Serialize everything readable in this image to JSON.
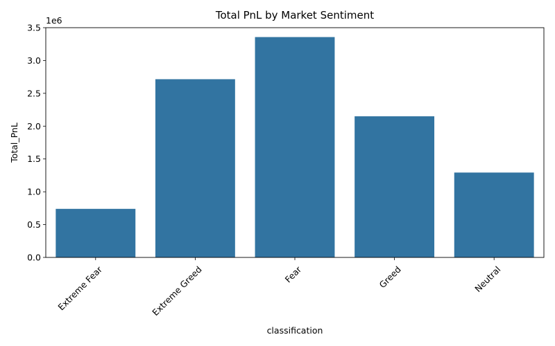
{
  "chart_data": {
    "type": "bar",
    "title": "Total PnL by Market Sentiment",
    "xlabel": "classification",
    "ylabel": "Total_PnL",
    "y_offset_label": "1e6",
    "categories": [
      "Extreme Fear",
      "Extreme Greed",
      "Fear",
      "Greed",
      "Neutral"
    ],
    "values": [
      740000,
      2715000,
      3357000,
      2150000,
      1293000
    ],
    "ylim": [
      0,
      3500000
    ],
    "y_ticks": [
      0,
      500000,
      1000000,
      1500000,
      2000000,
      2500000,
      3000000,
      3500000
    ],
    "y_tick_labels": [
      "0.0",
      "0.5",
      "1.0",
      "1.5",
      "2.0",
      "2.5",
      "3.0",
      "3.5"
    ],
    "bar_color": "#3274a1",
    "grid": false,
    "x_tick_rotation_deg": 45
  }
}
